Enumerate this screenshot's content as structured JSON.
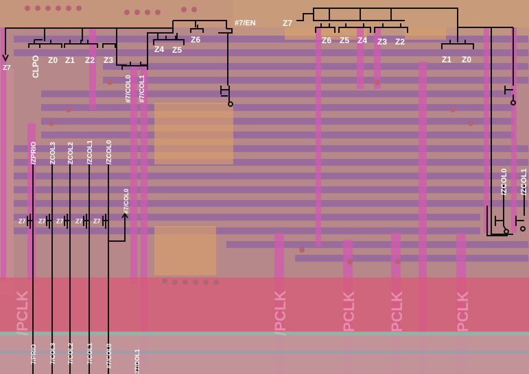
{
  "colors": {
    "background": "#b7888a",
    "orange_band": "#d9a06a",
    "purple_band": "#9a6aa4",
    "magenta_trace": "#d25ab0",
    "red_area": "#d65a78",
    "wire": "#101010",
    "label": "#ffffff"
  },
  "labels": {
    "top_left": {
      "z7_arrow": "Z7",
      "clpo": "CLPO",
      "z0": "Z0",
      "z1": "Z1",
      "z2": "Z2",
      "z3": "Z3",
      "z4": "Z4",
      "z5": "Z5",
      "z6": "Z6",
      "en": "#7/EN",
      "col0": "#7/COL0",
      "col1": "#7/COL1"
    },
    "top_right": {
      "z7": "Z7",
      "z6": "Z6",
      "z5": "Z5",
      "z4": "Z4",
      "z3": "Z3",
      "z2": "Z2",
      "z1": "Z1",
      "z0": "Z0"
    },
    "column_inputs": {
      "zprio": "/ZPRIO",
      "zcol3": "ZCOL3",
      "zcol2": "ZCOL2",
      "zcol1": "/ZCOL1",
      "zcol0": "/ZCOL0"
    },
    "z7_gates": [
      "Z7",
      "Z7",
      "Z7",
      "Z7",
      "Z7"
    ],
    "mid_col0": "#7/COL0",
    "right_inputs": {
      "zcol0": "/ZCOL0",
      "zcol1": "/ZCOL1"
    },
    "bottom_outputs": {
      "prio": "7/PRIO",
      "col3": "7/COL3",
      "col2": "7/COL2",
      "col1": "7/COL1",
      "col0": "#7/COL0",
      "col1b": "#7/COL1"
    },
    "pclk": [
      "/PCLK",
      "/PCLK",
      "PCLK",
      "PCLK",
      "PCLK"
    ]
  }
}
